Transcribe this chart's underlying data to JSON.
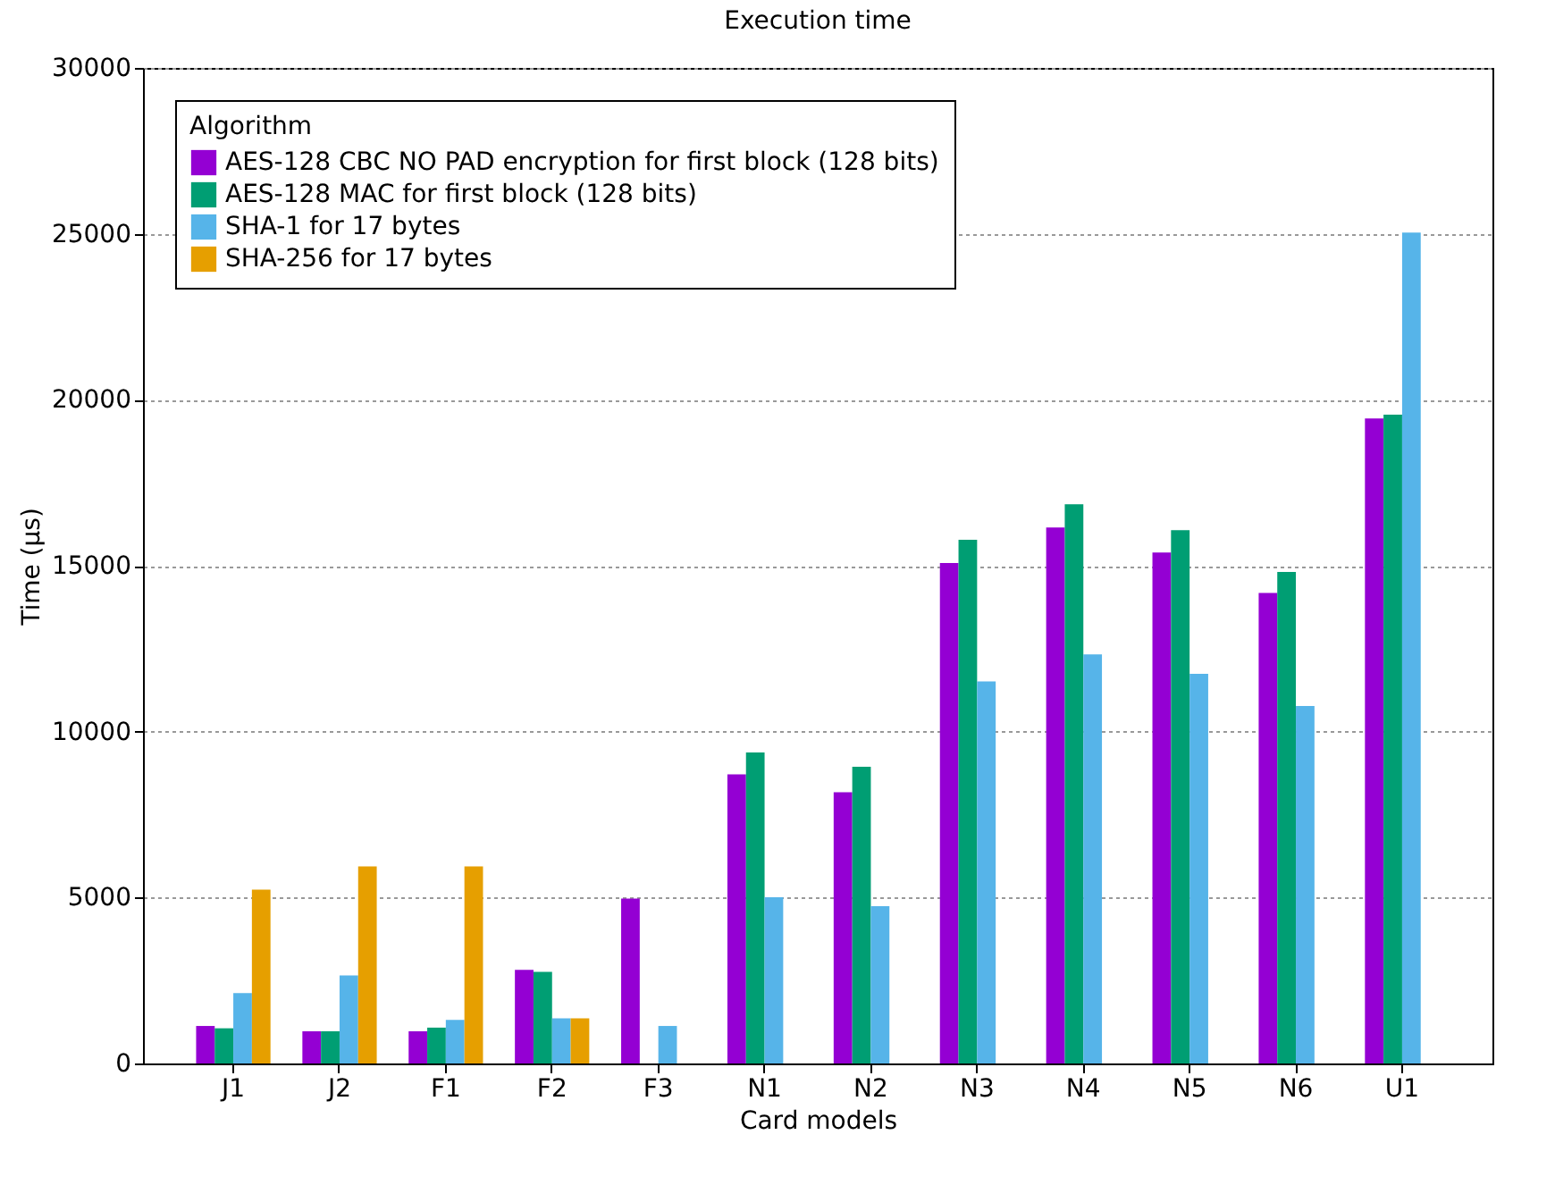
{
  "chart_data": {
    "type": "bar",
    "title": "Execution time",
    "xlabel": "Card models",
    "ylabel": "Time (µs)",
    "legend_title": "Algorithm",
    "legend": "top left",
    "grid": "y",
    "ylim": [
      0,
      30000
    ],
    "yticks": [
      0,
      5000,
      10000,
      15000,
      20000,
      25000,
      30000
    ],
    "categories": [
      "J1",
      "J2",
      "F1",
      "F2",
      "F3",
      "N1",
      "N2",
      "N3",
      "N4",
      "N5",
      "N6",
      "U1"
    ],
    "series": [
      {
        "name": "AES-128 CBC NO PAD encryption for first block (128 bits)",
        "color": "#9400d3",
        "values": [
          1130,
          970,
          970,
          2820,
          4970,
          8710,
          8170,
          15080,
          16150,
          15400,
          14180,
          19440
        ]
      },
      {
        "name": "AES-128 MAC for first block (128 bits)",
        "color": "#009e73",
        "values": [
          1060,
          970,
          1080,
          2760,
          null,
          9370,
          8940,
          15780,
          16850,
          16070,
          14810,
          19550
        ]
      },
      {
        "name": "SHA-1 for 17 bytes",
        "color": "#56b4e9",
        "values": [
          2120,
          2650,
          1310,
          1360,
          1130,
          5010,
          4740,
          11510,
          12330,
          11740,
          10770,
          25040
        ]
      },
      {
        "name": "SHA-256 for 17 bytes",
        "color": "#e69f00",
        "values": [
          5240,
          5940,
          5940,
          1360,
          null,
          null,
          null,
          null,
          null,
          null,
          null,
          null
        ]
      }
    ]
  }
}
